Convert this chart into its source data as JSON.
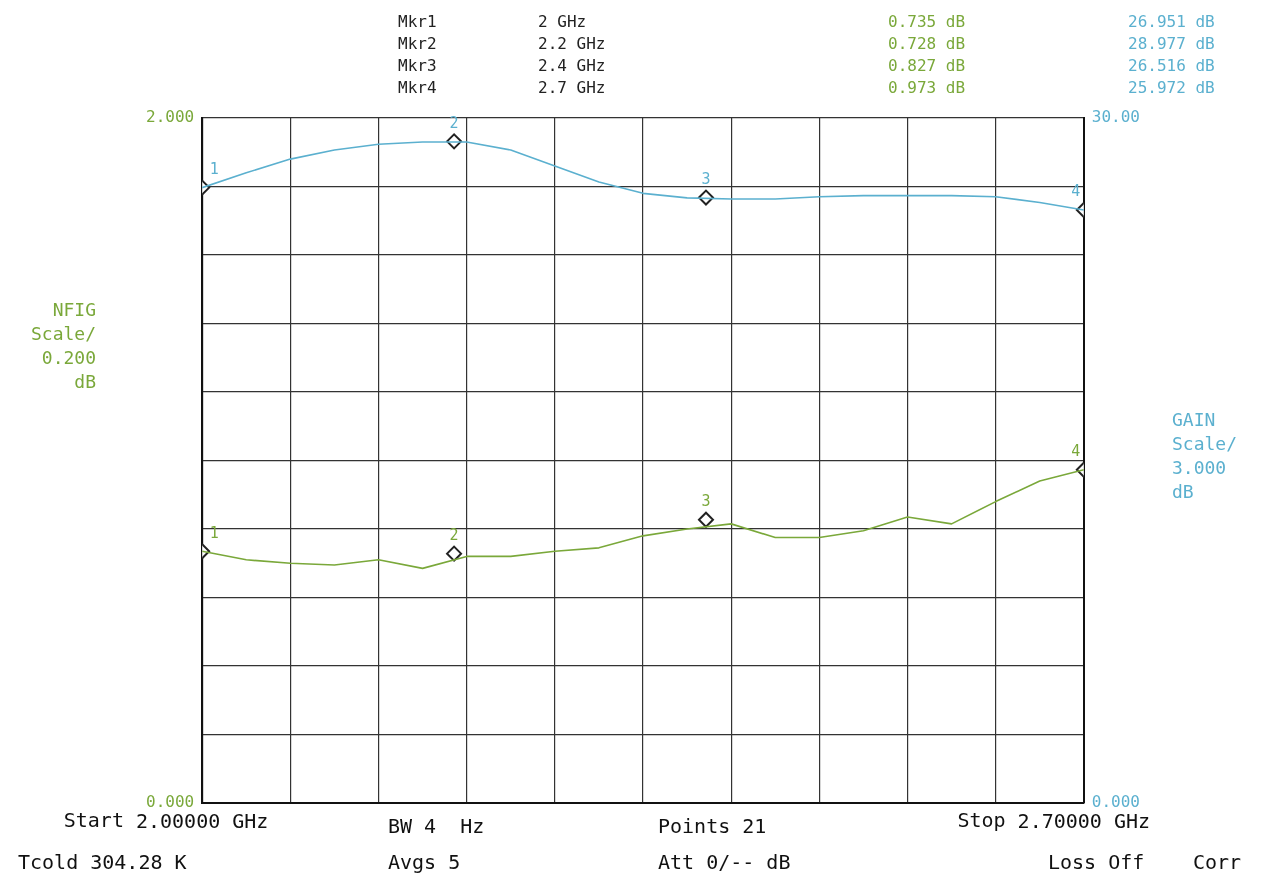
{
  "chart_data": {
    "type": "line",
    "ylabel": "NFIG Scale/ 0.200 dB",
    "y2label": "GAIN Scale/ 3.000 dB",
    "x": [
      2.0,
      2.035,
      2.07,
      2.105,
      2.14,
      2.175,
      2.21,
      2.245,
      2.28,
      2.315,
      2.35,
      2.385,
      2.42,
      2.455,
      2.49,
      2.525,
      2.56,
      2.595,
      2.63,
      2.665,
      2.7
    ],
    "xlim": [
      2.0,
      2.7
    ],
    "xticks": [
      {
        "value": 2.0,
        "label": "2.00000 GHz"
      },
      {
        "value": 2.07,
        "label": null
      },
      {
        "value": 2.14,
        "label": null
      },
      {
        "value": 2.21,
        "label": null
      },
      {
        "value": 2.28,
        "label": null
      },
      {
        "value": 2.35,
        "label": null
      },
      {
        "value": 2.42,
        "label": null
      },
      {
        "value": 2.49,
        "label": null
      },
      {
        "value": 2.56,
        "label": null
      },
      {
        "value": 2.63,
        "label": null
      },
      {
        "value": 2.7,
        "label": "2.70000 GHz"
      }
    ],
    "ylim": [
      0,
      2
    ],
    "yticks": [
      {
        "value": 0,
        "label": "0.000"
      },
      {
        "value": 0.2,
        "label": null
      },
      {
        "value": 0.4,
        "label": null
      },
      {
        "value": 0.6,
        "label": null
      },
      {
        "value": 0.8,
        "label": null
      },
      {
        "value": 1.0,
        "label": null
      },
      {
        "value": 1.2,
        "label": null
      },
      {
        "value": 1.4,
        "label": null
      },
      {
        "value": 1.6,
        "label": null
      },
      {
        "value": 1.8,
        "label": null
      },
      {
        "value": 2,
        "label": "2.000"
      }
    ],
    "y2lim": [
      0,
      30
    ],
    "y2ticks": [
      {
        "value": 0,
        "label": "0.000"
      },
      {
        "value": 30,
        "label": "30.00"
      }
    ],
    "grid": true,
    "marker": "none",
    "series": [
      {
        "color": "#7aa83a",
        "values": [
          0.735,
          0.71,
          0.7,
          0.695,
          0.71,
          0.685,
          0.72,
          0.72,
          0.735,
          0.745,
          0.78,
          0.8,
          0.815,
          0.775,
          0.775,
          0.795,
          0.835,
          0.815,
          0.88,
          0.94,
          0.973
        ]
      },
      {
        "color": "#5bb0cf",
        "axis": "y2",
        "values": [
          26.95,
          27.6,
          28.2,
          28.6,
          28.85,
          28.95,
          28.95,
          28.6,
          27.9,
          27.2,
          26.7,
          26.5,
          26.45,
          26.45,
          26.55,
          26.6,
          26.6,
          26.6,
          26.55,
          26.3,
          25.97
        ]
      },
      {
        "type": "scatter",
        "color": "#222222",
        "marker": "diamond",
        "x": [
          2.0,
          2.2,
          2.4,
          2.7
        ],
        "values": [
          0.735,
          0.728,
          0.827,
          0.973
        ]
      },
      {
        "type": "scatter",
        "color": "#222222",
        "marker": "diamond",
        "axis": "y2",
        "x": [
          2.0,
          2.2,
          2.4,
          2.7
        ],
        "values": [
          26.951,
          28.977,
          26.516,
          25.972
        ]
      }
    ],
    "annotations": [
      "1",
      "2",
      "3",
      "4",
      "1",
      "2",
      "3",
      "4",
      "Mkr1",
      "2 GHz",
      "0.735 dB",
      "26.951 dB",
      "Mkr2",
      "2.2 GHz",
      "0.728 dB",
      "28.977 dB",
      "Mkr3",
      "2.4 GHz",
      "0.827 dB",
      "26.516 dB",
      "Mkr4",
      "2.7 GHz",
      "0.973 dB",
      "25.972 dB",
      "BW 4  Hz",
      "Points 21",
      "Tcold 304.28 K",
      "Avgs 5",
      "Att 0/-- dB",
      "Loss Off",
      "Corr",
      "Start",
      "Stop"
    ]
  }
}
